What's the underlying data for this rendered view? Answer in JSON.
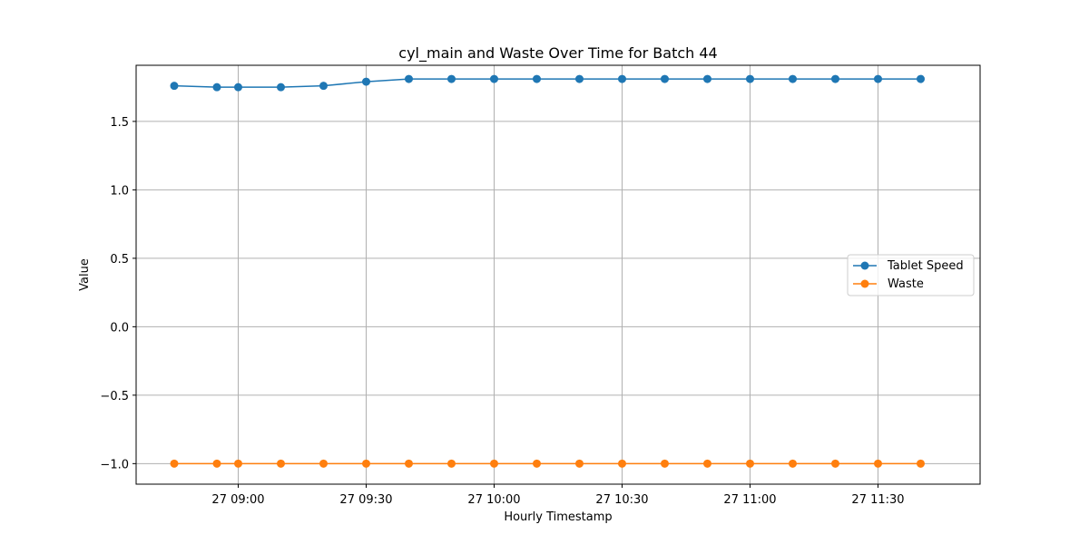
{
  "chart_data": {
    "type": "line",
    "title": "cyl_main and Waste Over Time for Batch 44",
    "xlabel": "Hourly Timestamp",
    "ylabel": "Value",
    "x": [
      "08:45",
      "08:55",
      "09:00",
      "09:10",
      "09:20",
      "09:30",
      "09:40",
      "09:50",
      "10:00",
      "10:10",
      "10:20",
      "10:30",
      "10:40",
      "10:50",
      "11:00",
      "11:10",
      "11:20",
      "11:30",
      "11:40"
    ],
    "x_tick_labels": [
      "27 09:00",
      "27 09:30",
      "27 10:00",
      "27 10:30",
      "27 11:00",
      "27 11:30"
    ],
    "x_tick_times": [
      "09:00",
      "09:30",
      "10:00",
      "10:30",
      "11:00",
      "11:30"
    ],
    "y_tick_values": [
      -1.0,
      -0.5,
      0.0,
      0.5,
      1.0,
      1.5
    ],
    "y_tick_labels": [
      "−1.0",
      "−0.5",
      "0.0",
      "0.5",
      "1.0",
      "1.5"
    ],
    "ylim": [
      -1.15,
      1.91
    ],
    "grid": true,
    "legend_position": "center-right",
    "series": [
      {
        "name": "Tablet Speed",
        "color": "#1f77b4",
        "values": [
          1.76,
          1.75,
          1.75,
          1.75,
          1.76,
          1.79,
          1.81,
          1.81,
          1.81,
          1.81,
          1.81,
          1.81,
          1.81,
          1.81,
          1.81,
          1.81,
          1.81,
          1.81,
          1.81
        ]
      },
      {
        "name": "Waste",
        "color": "#ff7f0e",
        "values": [
          -1,
          -1,
          -1,
          -1,
          -1,
          -1,
          -1,
          -1,
          -1,
          -1,
          -1,
          -1,
          -1,
          -1,
          -1,
          -1,
          -1,
          -1,
          -1
        ]
      }
    ]
  }
}
